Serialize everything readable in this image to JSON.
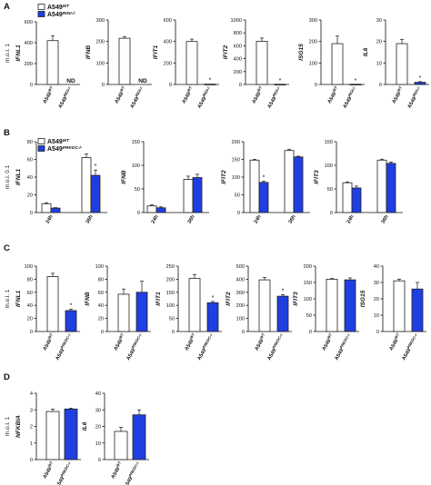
{
  "colors": {
    "wt": "#ffffff",
    "ko": "#1f3fe0",
    "stroke": "#222222"
  },
  "legends": {
    "A": [
      {
        "label": "A549",
        "sup": "WT",
        "color": "#ffffff"
      },
      {
        "label": "A549",
        "sup": "RIGI-/-",
        "color": "#1f3fe0"
      }
    ],
    "B": [
      {
        "label": "A549",
        "sup": "WT",
        "color": "#ffffff"
      },
      {
        "label": "A549",
        "sup": "PRKDC-/-",
        "color": "#1f3fe0"
      }
    ]
  },
  "chart_data": [
    {
      "panel": "A",
      "type": "bar",
      "gene": "IFNL1",
      "ylabel": "m.o.i. 1",
      "ylim": [
        0,
        600
      ],
      "yticks": [
        0,
        200,
        400,
        600
      ],
      "categories": [
        "A549WT",
        "A549RIGI-/-"
      ],
      "cat_sup": [
        "WT",
        "RIGI-/-"
      ],
      "values": [
        420,
        0
      ],
      "errors": [
        45,
        0
      ],
      "annotations": [
        "",
        "ND"
      ]
    },
    {
      "panel": "A",
      "type": "bar",
      "gene": "IFNB",
      "ylim": [
        0,
        300
      ],
      "yticks": [
        0,
        100,
        200,
        300
      ],
      "categories": [
        "A549WT",
        "A549RIGI-/-"
      ],
      "cat_sup": [
        "WT",
        "RIGI-/-"
      ],
      "values": [
        215,
        0
      ],
      "errors": [
        8,
        0
      ],
      "annotations": [
        "",
        "ND"
      ]
    },
    {
      "panel": "A",
      "type": "bar",
      "gene": "IFIT1",
      "ylim": [
        0,
        600
      ],
      "yticks": [
        0,
        200,
        400,
        600
      ],
      "categories": [
        "A549WT",
        "A549RIGI-/-"
      ],
      "cat_sup": [
        "WT",
        "RIGI-/-"
      ],
      "values": [
        400,
        3
      ],
      "errors": [
        22,
        0
      ],
      "annotations": [
        "",
        "*"
      ]
    },
    {
      "panel": "A",
      "type": "bar",
      "gene": "IFIT2",
      "ylim": [
        0,
        1000
      ],
      "yticks": [
        0,
        200,
        400,
        600,
        800,
        1000
      ],
      "categories": [
        "A549WT",
        "A549RIGI-/-"
      ],
      "cat_sup": [
        "WT",
        "RIGI-/-"
      ],
      "values": [
        670,
        3
      ],
      "errors": [
        50,
        0
      ],
      "annotations": [
        "",
        "*"
      ]
    },
    {
      "panel": "A",
      "type": "bar",
      "gene": "ISG15",
      "ylim": [
        0,
        300
      ],
      "yticks": [
        0,
        100,
        200,
        300
      ],
      "categories": [
        "A549WT",
        "A549RIGI-/-"
      ],
      "cat_sup": [
        "WT",
        "RIGI-/-"
      ],
      "values": [
        190,
        1
      ],
      "errors": [
        35,
        0
      ],
      "annotations": [
        "",
        "*"
      ]
    },
    {
      "panel": "A",
      "type": "bar",
      "gene": "IL6",
      "ylim": [
        0,
        30
      ],
      "yticks": [
        0,
        10,
        20,
        30
      ],
      "categories": [
        "A549WT",
        "A549RIGI-/-"
      ],
      "cat_sup": [
        "WT",
        "RIGI-/-"
      ],
      "values": [
        19,
        1
      ],
      "errors": [
        2,
        0.3
      ],
      "annotations": [
        "",
        "*"
      ]
    },
    {
      "panel": "B",
      "type": "bar",
      "gene": "IFNL1",
      "ylabel": "m.o.i. 0.1",
      "ylim": [
        0,
        80
      ],
      "yticks": [
        0,
        20,
        40,
        60,
        80
      ],
      "categories": [
        "24h",
        "36h"
      ],
      "series": [
        {
          "name": "A549WT",
          "values": [
            10,
            62
          ],
          "errors": [
            1,
            4
          ]
        },
        {
          "name": "A549PRKDC-/-",
          "values": [
            5,
            42
          ],
          "errors": [
            0.5,
            6
          ]
        }
      ],
      "annotations": [
        "",
        "*"
      ]
    },
    {
      "panel": "B",
      "type": "bar",
      "gene": "IFNB",
      "ylim": [
        0,
        150
      ],
      "yticks": [
        0,
        50,
        100,
        150
      ],
      "categories": [
        "24h",
        "36h"
      ],
      "series": [
        {
          "name": "A549WT",
          "values": [
            14,
            70
          ],
          "errors": [
            2,
            7
          ]
        },
        {
          "name": "A549PRKDC-/-",
          "values": [
            10,
            74
          ],
          "errors": [
            2,
            7
          ]
        }
      ],
      "annotations": [
        "",
        ""
      ]
    },
    {
      "panel": "B",
      "type": "bar",
      "gene": "IFIT2",
      "ylim": [
        0,
        200
      ],
      "yticks": [
        0,
        50,
        100,
        150,
        200
      ],
      "categories": [
        "24h",
        "36h"
      ],
      "series": [
        {
          "name": "A549WT",
          "values": [
            148,
            175
          ],
          "errors": [
            2,
            3
          ]
        },
        {
          "name": "A549PRKDC-/-",
          "values": [
            85,
            157
          ],
          "errors": [
            3,
            2
          ]
        }
      ],
      "annotations": [
        "*",
        ""
      ]
    },
    {
      "panel": "B",
      "type": "bar",
      "gene": "IFIT3",
      "ylim": [
        0,
        150
      ],
      "yticks": [
        0,
        50,
        100,
        150
      ],
      "categories": [
        "24h",
        "36h"
      ],
      "series": [
        {
          "name": "A549WT",
          "values": [
            63,
            111
          ],
          "errors": [
            2,
            2
          ]
        },
        {
          "name": "A549PRKDC-/-",
          "values": [
            52,
            104
          ],
          "errors": [
            4,
            3
          ]
        }
      ],
      "annotations": [
        "",
        ""
      ]
    },
    {
      "panel": "C",
      "type": "bar",
      "gene": "IFNL1",
      "ylabel": "m.o.i. 1",
      "ylim": [
        0,
        100
      ],
      "yticks": [
        0,
        20,
        40,
        60,
        80,
        100
      ],
      "categories": [
        "A549WT",
        "A549PRKDC-/-"
      ],
      "cat_sup": [
        "WT",
        "PRKDC-/-"
      ],
      "values": [
        84,
        32
      ],
      "errors": [
        5,
        2
      ],
      "annotations": [
        "",
        "*"
      ]
    },
    {
      "panel": "C",
      "type": "bar",
      "gene": "IFNB",
      "ylim": [
        0,
        100
      ],
      "yticks": [
        0,
        20,
        40,
        60,
        80,
        100
      ],
      "categories": [
        "A549WT",
        "A549PRKDC-/-"
      ],
      "cat_sup": [
        "WT",
        "PRKDC-/-"
      ],
      "values": [
        57,
        60
      ],
      "errors": [
        8,
        17
      ],
      "annotations": [
        "",
        ""
      ]
    },
    {
      "panel": "C",
      "type": "bar",
      "gene": "IFIT1",
      "ylim": [
        0,
        250
      ],
      "yticks": [
        0,
        50,
        100,
        150,
        200,
        250
      ],
      "categories": [
        "A549WT",
        "A549PRKDC-/-"
      ],
      "cat_sup": [
        "WT",
        "PRKDC-/-"
      ],
      "values": [
        203,
        110
      ],
      "errors": [
        15,
        5
      ],
      "annotations": [
        "",
        "*"
      ]
    },
    {
      "panel": "C",
      "type": "bar",
      "gene": "IFIT2",
      "ylim": [
        0,
        500
      ],
      "yticks": [
        0,
        100,
        200,
        300,
        400,
        500
      ],
      "categories": [
        "A549WT",
        "A549PRKDC-/-"
      ],
      "cat_sup": [
        "WT",
        "PRKDC-/-"
      ],
      "values": [
        395,
        270
      ],
      "errors": [
        18,
        12
      ],
      "annotations": [
        "",
        "*"
      ]
    },
    {
      "panel": "C",
      "type": "bar",
      "gene": "IFIT3",
      "ylim": [
        0,
        200
      ],
      "yticks": [
        0,
        50,
        100,
        150,
        200
      ],
      "categories": [
        "A549WT",
        "A549PRKDC-/-"
      ],
      "cat_sup": [
        "WT",
        "PRKDC-/-"
      ],
      "values": [
        160,
        158
      ],
      "errors": [
        2,
        6
      ],
      "annotations": [
        "",
        ""
      ]
    },
    {
      "panel": "C",
      "type": "bar",
      "gene": "ISG15",
      "ylim": [
        0,
        40
      ],
      "yticks": [
        0,
        10,
        20,
        30,
        40
      ],
      "categories": [
        "A549WT",
        "A549PRKDC-/-"
      ],
      "cat_sup": [
        "WT",
        "PRKDC-/-"
      ],
      "values": [
        31,
        26
      ],
      "errors": [
        1,
        4
      ],
      "annotations": [
        "",
        ""
      ]
    },
    {
      "panel": "D",
      "type": "bar",
      "gene": "NFKBIA",
      "ylabel": "m.o.i. 1",
      "ylim": [
        0,
        4
      ],
      "yticks": [
        0,
        1,
        2,
        3,
        4
      ],
      "categories": [
        "A549WT",
        "A549PRKDC-/-"
      ],
      "cat_sup": [
        "WT",
        "PRKDC-/-"
      ],
      "values": [
        2.9,
        3.05
      ],
      "errors": [
        0.15,
        0.05
      ],
      "annotations": [
        "",
        ""
      ]
    },
    {
      "panel": "D",
      "type": "bar",
      "gene": "IL6",
      "ylim": [
        0,
        40
      ],
      "yticks": [
        0,
        10,
        20,
        30,
        40
      ],
      "categories": [
        "A549WT",
        "A549PRKDC-/-"
      ],
      "cat_sup": [
        "WT",
        "PRKDC-/-"
      ],
      "values": [
        17,
        27
      ],
      "errors": [
        2.5,
        3
      ],
      "annotations": [
        "",
        ""
      ]
    }
  ]
}
